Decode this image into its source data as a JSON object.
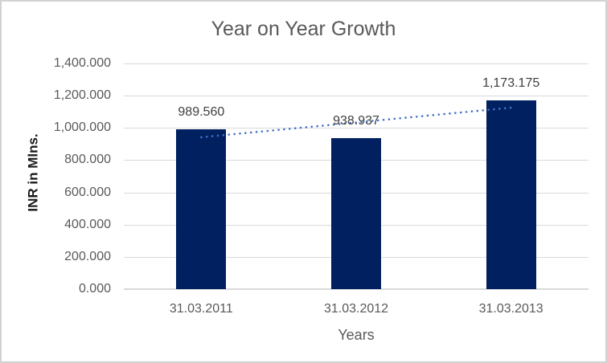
{
  "chart_data": {
    "type": "bar",
    "title": "Year on Year Growth",
    "xlabel": "Years",
    "ylabel": "INR in Mlns.",
    "categories": [
      "31.03.2011",
      "31.03.2012",
      "31.03.2013"
    ],
    "values": [
      989.56,
      938.937,
      1173.175
    ],
    "data_labels": [
      "989.560",
      "938.937",
      "1,173.175"
    ],
    "ylim": [
      0,
      1400
    ],
    "y_tick_step": 200,
    "y_tick_labels_top_to_bottom": [
      "1,400.000",
      "1,200.000",
      "1,000.000",
      "800.000",
      "600.000",
      "400.000",
      "200.000",
      "0.000"
    ],
    "grid": "horizontal",
    "legend": "none",
    "trendline": {
      "type": "linear",
      "style": "dotted",
      "color": "#4472C4"
    },
    "colors": {
      "bar_fill": "#002060",
      "trendline": "#4472C4",
      "gridline": "#d9d9d9",
      "axis_text": "#595959",
      "data_label_text": "#404040",
      "title_text": "#595959",
      "y_axis_title_text": "#1a1a1a",
      "frame_border": "#d2d2d2",
      "background": "#ffffff"
    }
  }
}
